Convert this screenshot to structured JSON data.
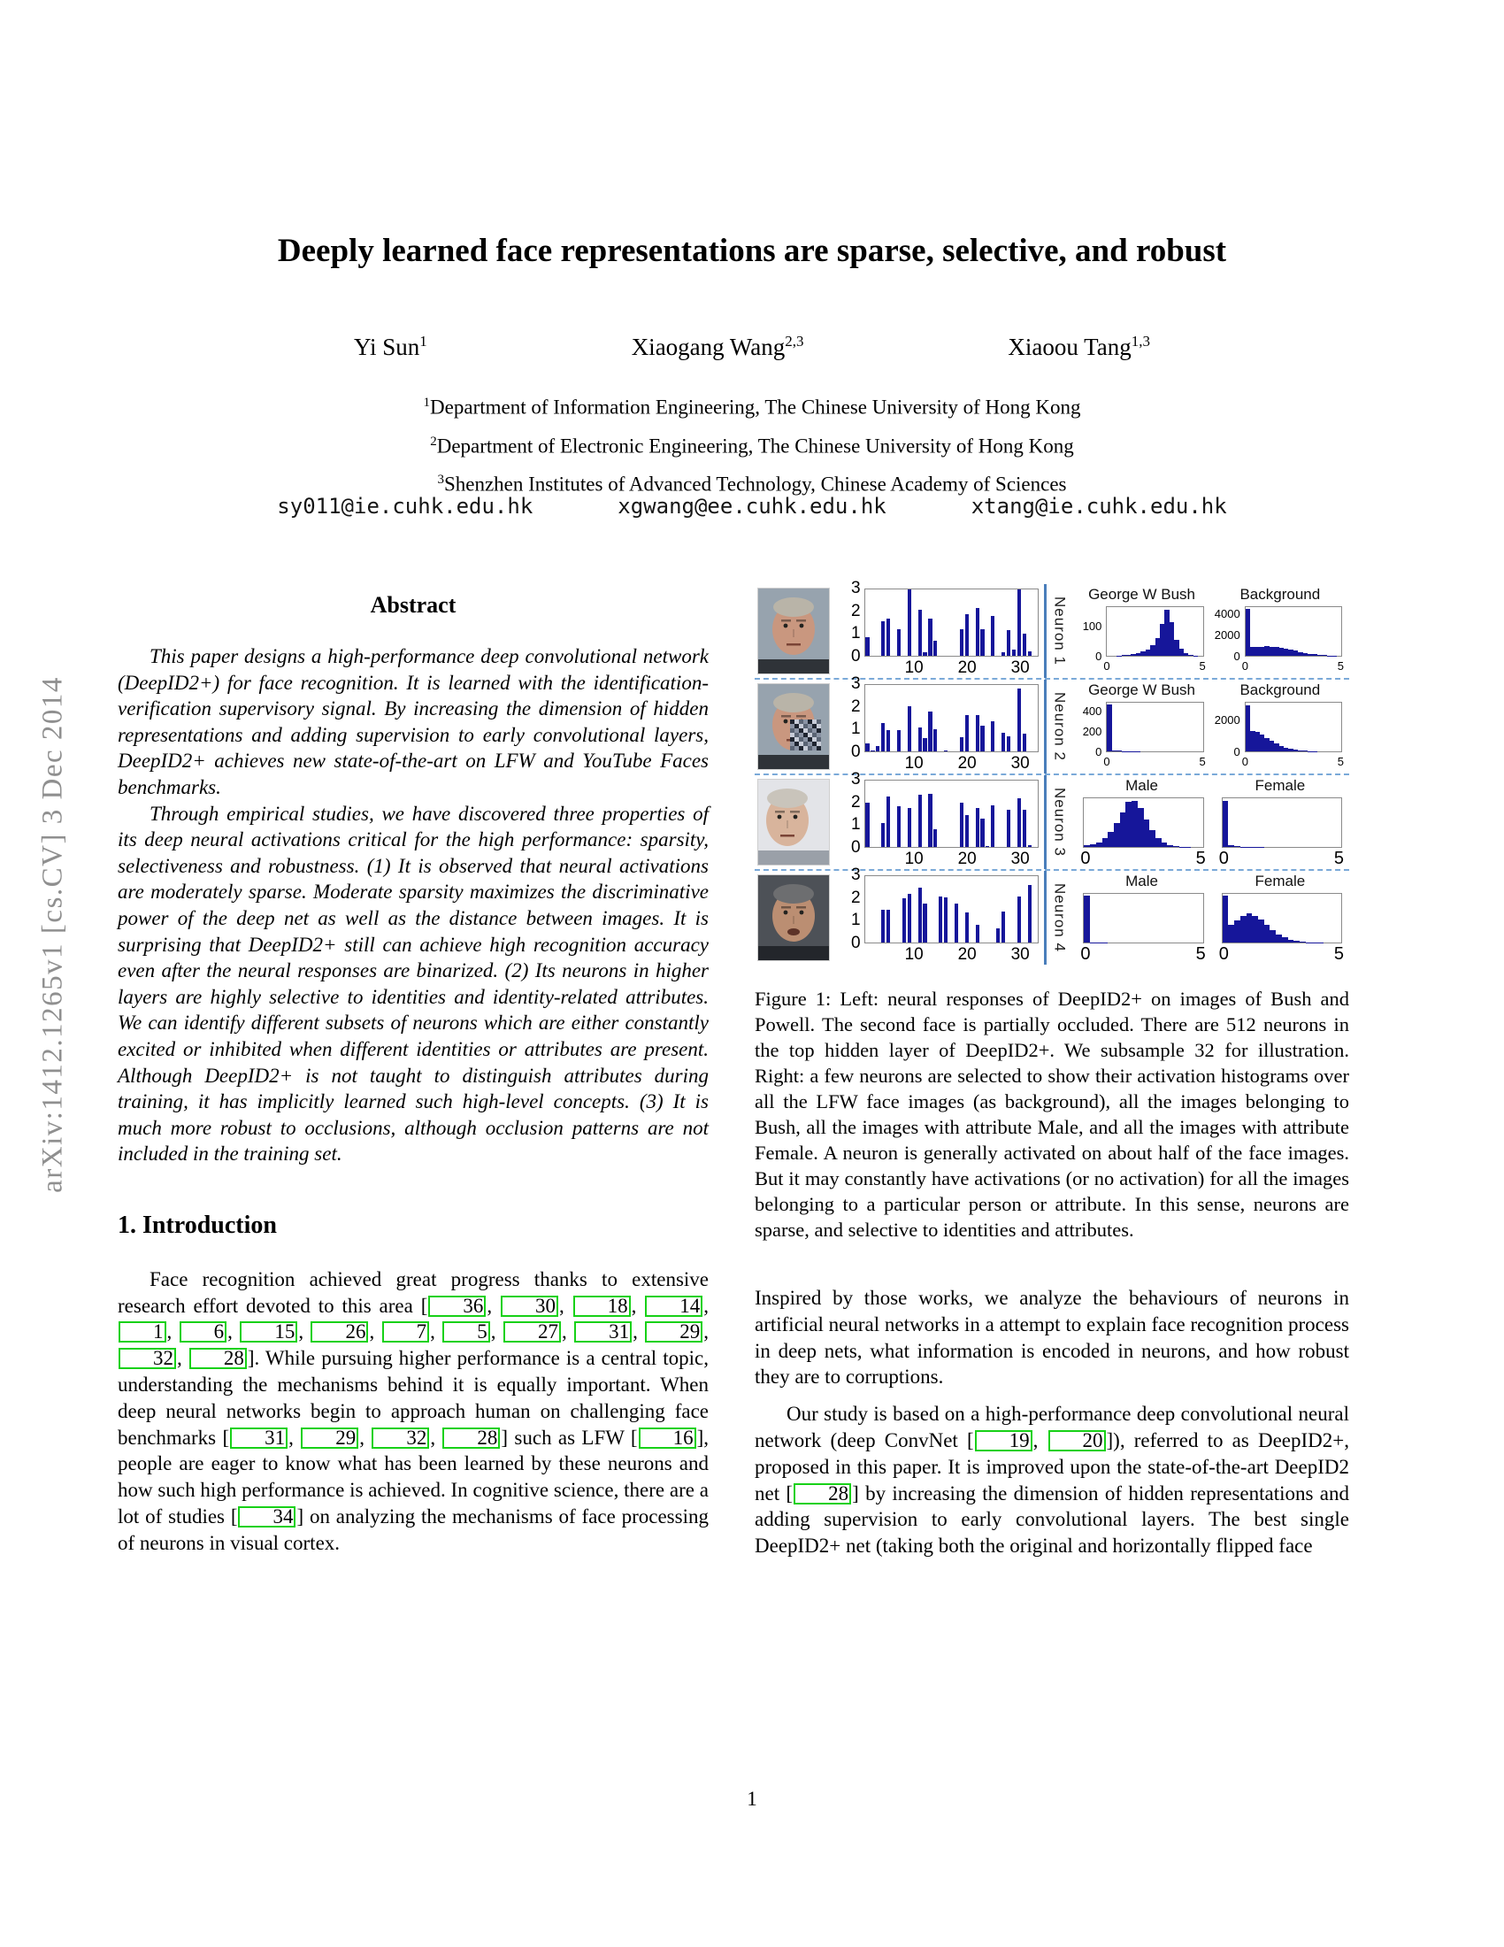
{
  "arxiv_stamp": "arXiv:1412.1265v1  [cs.CV]  3 Dec 2014",
  "page_number": "1",
  "header": {
    "title": "Deeply learned face representations are sparse, selective, and robust",
    "authors": [
      {
        "name": "Yi Sun",
        "sup": "1"
      },
      {
        "name": "Xiaogang Wang",
        "sup": "2,3"
      },
      {
        "name": "Xiaoou Tang",
        "sup": "1,3"
      }
    ],
    "affiliations": [
      {
        "sup": "1",
        "text": "Department of Information Engineering, The Chinese University of Hong Kong"
      },
      {
        "sup": "2",
        "text": "Department of Electronic Engineering, The Chinese University of Hong Kong"
      },
      {
        "sup": "3",
        "text": "Shenzhen Institutes of Advanced Technology, Chinese Academy of Sciences"
      }
    ],
    "emails": [
      "sy011@ie.cuhk.edu.hk",
      "xgwang@ee.cuhk.edu.hk",
      "xtang@ie.cuhk.edu.hk"
    ]
  },
  "abstract": {
    "heading": "Abstract",
    "paragraphs": [
      "This paper designs a high-performance deep convolutional network (DeepID2+) for face recognition.  It is learned with the identification-verification supervisory signal.  By increasing the dimension of hidden representations and adding supervision to early convolutional layers, DeepID2+ achieves new state-of-the-art on LFW and YouTube Faces benchmarks.",
      "Through empirical studies, we have discovered three properties of its deep neural activations critical for the high performance: sparsity, selectiveness and robustness. (1) It is observed that neural activations are moderately sparse. Moderate sparsity maximizes the discriminative power of the deep net as well as the distance between images. It is surprising that DeepID2+ still can achieve high recognition accuracy even after the neural responses are binarized. (2) Its neurons in higher layers are highly selective to identities and identity-related attributes. We can identify different subsets of neurons which are either constantly excited or inhibited when different identities or attributes are present. Although DeepID2+ is not taught to distinguish attributes during training, it has implicitly learned such high-level concepts. (3) It is much more robust to occlusions, although occlusion patterns are not included in the training set."
    ]
  },
  "introduction": {
    "heading": "1. Introduction",
    "paragraphs": [
      "Face recognition achieved great progress thanks to extensive research effort devoted to this area [{36}, {30}, {18}, {14}, {1}, {6}, {15}, {26}, {7}, {5}, {27}, {31}, {29}, {32}, {28}].  While pursuing higher performance is a central topic, understanding the mechanisms behind it is equally important.  When deep neural networks begin to approach human on challenging face benchmarks [{31}, {29}, {32}, {28}] such as LFW [{16}], people are eager to know what has been learned by these neurons and how such high performance is achieved.  In cognitive science, there are a lot of studies [{34}] on analyzing the mechanisms of face processing of neurons in visual cortex."
    ]
  },
  "right_column": {
    "paragraphs": [
      "Inspired by those works, we analyze the behaviours of neurons in artificial neural networks in a attempt to explain face recognition process in deep nets, what information is encoded in neurons, and how robust they are to corruptions.",
      "Our study is based on a high-performance deep convolutional neural network (deep ConvNet [{19}, {20}]), referred to as DeepID2+, proposed in this paper.  It is improved upon the state-of-the-art DeepID2 net [{28}] by increasing the dimension of hidden representations and adding supervision to early convolutional layers.  The best single DeepID2+ net (taking both the original and horizontally flipped face"
    ]
  },
  "figure": {
    "caption": "Figure 1:  Left:  neural responses of DeepID2+ on images of Bush and Powell.  The second face is partially occluded. There are 512 neurons in the top hidden layer of DeepID2+. We subsample 32 for illustration.  Right:  a few neurons are selected to show their activation histograms over all the LFW face images (as background), all the images belonging to Bush, all the images with attribute Male, and all the images with attribute Female.  A neuron is generally activated on about half of the face images.  But it may constantly have activations (or no activation) for all the images belonging to a particular person or attribute.  In this sense, neurons are sparse, and selective to identities and attributes."
  },
  "colors": {
    "bar_fill": "#16169a",
    "divider_dashed": "#7aa9d8",
    "divider_vertical": "#4a7ebb",
    "citation_box": "#17d117",
    "arxiv_gray": "#8f8f8f"
  },
  "chart_data": {
    "type": "figure-panels",
    "rows": [
      {
        "neuron_label": "Neuron 1",
        "face": {
          "person": "George W Bush",
          "occluded": false,
          "bg": "#97a3ae",
          "skin": "#c9977f",
          "hair": "#b9b4a8",
          "shoulders": "#2f3338",
          "cx": 40,
          "mouth_open": false
        },
        "bar_chart": {
          "type": "bar",
          "ylim": [
            0,
            3
          ],
          "yticks": [
            0,
            1,
            2,
            3
          ],
          "xticks": [
            10,
            20,
            30
          ],
          "values": [
            0.85,
            0,
            0,
            1.55,
            1.7,
            0,
            1.2,
            0,
            3,
            0,
            2.1,
            0.15,
            1.7,
            0.7,
            0,
            0,
            0,
            0,
            1.2,
            1.9,
            0,
            2.15,
            1.2,
            0,
            1.8,
            0,
            0.15,
            1.15,
            0.3,
            3,
            1.0,
            0.2
          ]
        },
        "histograms": [
          {
            "type": "bar",
            "title": "George W Bush",
            "xlim": [
              0,
              5
            ],
            "xticks": [
              0,
              5
            ],
            "yticks": [
              0,
              100
            ],
            "ymax": 170,
            "bins": [
              0,
              0,
              1,
              2,
              3,
              5,
              9,
              14,
              22,
              38,
              62,
              112,
              160,
              118,
              56,
              24,
              9,
              3,
              1,
              0
            ]
          },
          {
            "type": "bar",
            "title": "Background",
            "xlim": [
              0,
              5
            ],
            "xticks": [
              0,
              5
            ],
            "yticks": [
              0,
              2000,
              4000
            ],
            "ymax": 4700,
            "bins": [
              4500,
              880,
              820,
              860,
              900,
              870,
              830,
              780,
              700,
              600,
              490,
              380,
              280,
              195,
              140,
              95,
              60,
              30,
              12,
              5
            ]
          }
        ]
      },
      {
        "neuron_label": "Neuron 2",
        "face": {
          "person": "George W Bush (occluded)",
          "occluded": true,
          "bg": "#97a3ae",
          "skin": "#c9977f",
          "hair": "#b9b4a8",
          "shoulders": "#2f3338",
          "cx": 40,
          "mouth_open": false
        },
        "bar_chart": {
          "type": "bar",
          "ylim": [
            0,
            3
          ],
          "yticks": [
            0,
            1,
            2,
            3
          ],
          "xticks": [
            10,
            20,
            30
          ],
          "values": [
            0.35,
            0.05,
            0.25,
            1.3,
            0.95,
            0,
            0.95,
            0,
            2.05,
            0,
            1.1,
            0.6,
            1.8,
            1.0,
            0,
            0.05,
            0,
            0,
            0.65,
            1.65,
            0,
            1.65,
            1.15,
            0,
            1.35,
            0,
            0.85,
            0.7,
            0,
            2.85,
            0.8,
            0
          ]
        },
        "histograms": [
          {
            "type": "bar",
            "title": "George W Bush",
            "xlim": [
              0,
              5
            ],
            "xticks": [
              0,
              5
            ],
            "yticks": [
              0,
              200,
              400
            ],
            "ymax": 500,
            "bins": [
              480,
              12,
              6,
              3,
              2,
              1,
              1,
              0,
              0,
              0,
              0,
              0,
              0,
              0,
              0,
              0,
              0,
              0,
              0,
              0
            ]
          },
          {
            "type": "bar",
            "title": "Background",
            "xlim": [
              0,
              5
            ],
            "xticks": [
              0,
              5
            ],
            "yticks": [
              0,
              2000
            ],
            "ymax": 3200,
            "bins": [
              3000,
              1320,
              1260,
              1090,
              900,
              710,
              520,
              360,
              250,
              160,
              100,
              62,
              35,
              18,
              9,
              4,
              2,
              1,
              0,
              0
            ]
          }
        ]
      },
      {
        "neuron_label": "Neuron 3",
        "face": {
          "person": "George W Bush (profile)",
          "occluded": false,
          "bg": "#e3e4e8",
          "skin": "#d8b49c",
          "hair": "#c9c4bb",
          "shoulders": "#9aa0a8",
          "cx": 33,
          "mouth_open": false
        },
        "bar_chart": {
          "type": "bar",
          "ylim": [
            0,
            3
          ],
          "yticks": [
            0,
            1,
            2,
            3
          ],
          "xticks": [
            10,
            20,
            30
          ],
          "values": [
            2.0,
            0,
            0,
            1.1,
            2.3,
            0,
            1.85,
            0,
            1.75,
            0,
            2.35,
            0,
            2.4,
            0.8,
            0,
            0,
            0,
            0,
            2.0,
            1.45,
            0,
            1.75,
            1.3,
            0.05,
            1.9,
            0,
            0,
            1.7,
            0,
            2.2,
            1.7,
            0.1
          ]
        },
        "histograms": [
          {
            "type": "bar",
            "title": "Male",
            "xlim": [
              0,
              5
            ],
            "xticks": [
              0,
              5
            ],
            "yticks": [],
            "ymax": 860,
            "bins": [
              25,
              45,
              85,
              150,
              260,
              420,
              610,
              790,
              820,
              690,
              490,
              300,
              160,
              80,
              36,
              15,
              6,
              2,
              1,
              0
            ]
          },
          {
            "type": "bar",
            "title": "Female",
            "xlim": [
              0,
              5
            ],
            "xticks": [
              0,
              5
            ],
            "yticks": [],
            "ymax": 860,
            "bins": [
              820,
              28,
              14,
              8,
              5,
              3,
              2,
              1,
              1,
              0,
              0,
              0,
              0,
              0,
              0,
              0,
              0,
              0,
              0,
              0
            ]
          }
        ]
      },
      {
        "neuron_label": "Neuron 4",
        "face": {
          "person": "Colin Powell",
          "occluded": false,
          "bg": "#4d5157",
          "skin": "#bb8e72",
          "hair": "#6d6e70",
          "shoulders": "#23262b",
          "cx": 40,
          "mouth_open": true
        },
        "bar_chart": {
          "type": "bar",
          "ylim": [
            0,
            3
          ],
          "yticks": [
            0,
            1,
            2,
            3
          ],
          "xticks": [
            10,
            20,
            30
          ],
          "values": [
            0,
            0,
            0,
            1.5,
            1.5,
            0,
            0,
            2.0,
            2.2,
            0,
            2.5,
            1.75,
            0,
            0,
            2.1,
            2.05,
            0,
            1.75,
            0,
            1.35,
            0,
            0.8,
            0,
            0,
            0,
            0.65,
            1.4,
            0,
            0,
            2.1,
            0,
            2.6
          ]
        },
        "histograms": [
          {
            "type": "bar",
            "title": "Male",
            "xlim": [
              0,
              5
            ],
            "xticks": [
              0,
              5
            ],
            "yticks": [],
            "ymax": 900,
            "bins": [
              860,
              6,
              3,
              2,
              1,
              1,
              0,
              0,
              0,
              0,
              0,
              0,
              0,
              0,
              0,
              0,
              0,
              0,
              0,
              0
            ]
          },
          {
            "type": "bar",
            "title": "Female",
            "xlim": [
              0,
              5
            ],
            "xticks": [
              0,
              5
            ],
            "yticks": [],
            "ymax": 940,
            "bins": [
              900,
              340,
              430,
              510,
              560,
              515,
              440,
              340,
              240,
              160,
              100,
              60,
              32,
              16,
              8,
              4,
              2,
              1,
              0,
              0
            ]
          }
        ]
      }
    ]
  }
}
